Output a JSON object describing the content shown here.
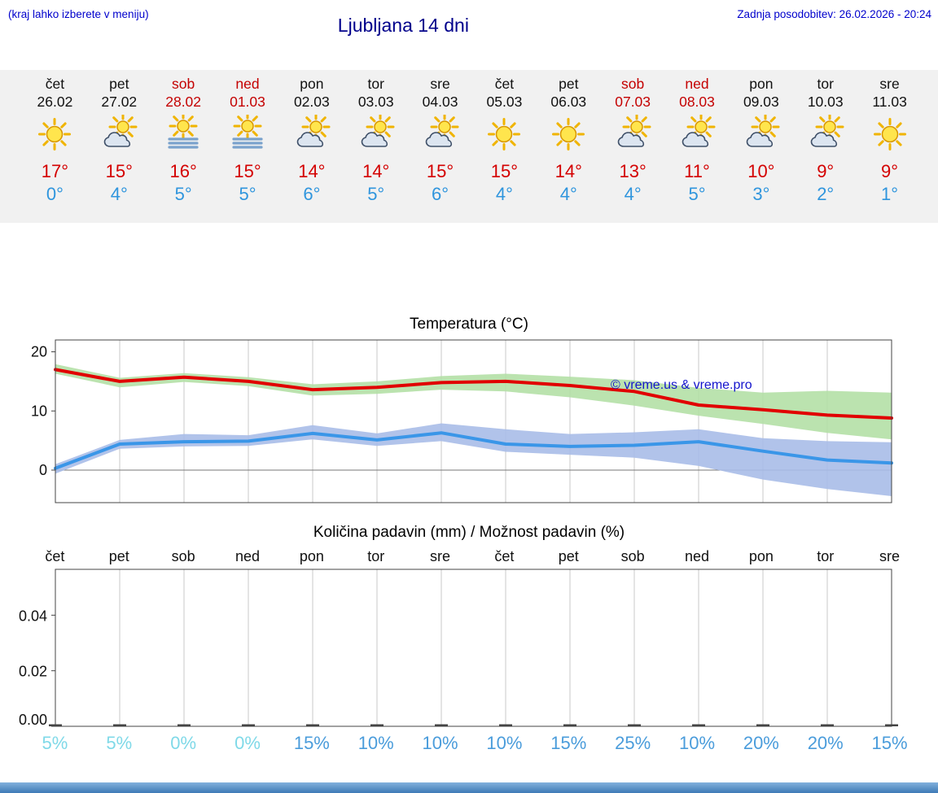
{
  "header": {
    "note": "(kraj lahko izberete v meniju)",
    "title": "Ljubljana 14 dni",
    "last_update": "Zadnja posodobitev: 26.02.2026 - 20:24"
  },
  "watermark": "© vreme.us & vreme.pro",
  "colors": {
    "link_blue": "#0000cc",
    "title_blue": "#00008b",
    "weekend_red": "#c40000",
    "weekday_black": "#111111",
    "high_red": "#d40000",
    "low_blue": "#2f95dd",
    "strip_bg": "#f1f1f1",
    "line_red": "#e10000",
    "line_blue": "#3a96e8",
    "band_green": "#b4e0a6",
    "band_blue": "#a8bce8",
    "prob_low": "#7fd9e8",
    "prob_high": "#4a9cdb",
    "footer_blue": "#3d7ab6"
  },
  "forecast": {
    "days": [
      {
        "name": "čet",
        "date": "26.02",
        "weekend": false,
        "icon": "sun",
        "high": "17°",
        "low": "0°"
      },
      {
        "name": "pet",
        "date": "27.02",
        "weekend": false,
        "icon": "sun-cloud",
        "high": "15°",
        "low": "4°"
      },
      {
        "name": "sob",
        "date": "28.02",
        "weekend": true,
        "icon": "sun-fog",
        "high": "16°",
        "low": "5°"
      },
      {
        "name": "ned",
        "date": "01.03",
        "weekend": true,
        "icon": "sun-fog",
        "high": "15°",
        "low": "5°"
      },
      {
        "name": "pon",
        "date": "02.03",
        "weekend": false,
        "icon": "sun-cloud",
        "high": "14°",
        "low": "6°"
      },
      {
        "name": "tor",
        "date": "03.03",
        "weekend": false,
        "icon": "sun-cloud",
        "high": "14°",
        "low": "5°"
      },
      {
        "name": "sre",
        "date": "04.03",
        "weekend": false,
        "icon": "sun-cloud",
        "high": "15°",
        "low": "6°"
      },
      {
        "name": "čet",
        "date": "05.03",
        "weekend": false,
        "icon": "sun",
        "high": "15°",
        "low": "4°"
      },
      {
        "name": "pet",
        "date": "06.03",
        "weekend": false,
        "icon": "sun",
        "high": "14°",
        "low": "4°"
      },
      {
        "name": "sob",
        "date": "07.03",
        "weekend": true,
        "icon": "sun-cloud",
        "high": "13°",
        "low": "4°"
      },
      {
        "name": "ned",
        "date": "08.03",
        "weekend": true,
        "icon": "sun-cloud",
        "high": "11°",
        "low": "5°"
      },
      {
        "name": "pon",
        "date": "09.03",
        "weekend": false,
        "icon": "sun-cloud",
        "high": "10°",
        "low": "3°"
      },
      {
        "name": "tor",
        "date": "10.03",
        "weekend": false,
        "icon": "sun-cloud",
        "high": "9°",
        "low": "2°"
      },
      {
        "name": "sre",
        "date": "11.03",
        "weekend": false,
        "icon": "sun",
        "high": "9°",
        "low": "1°"
      }
    ]
  },
  "chart_data": [
    {
      "type": "line",
      "title": "Temperatura (°C)",
      "x_days": [
        "čet",
        "pet",
        "sob",
        "ned",
        "pon",
        "tor",
        "sre",
        "čet",
        "pet",
        "sob",
        "ned",
        "pon",
        "tor",
        "sre"
      ],
      "ylim": [
        -5.5,
        22
      ],
      "yticks": [
        0,
        10,
        20
      ],
      "grid": "vertical-per-day",
      "legend": "none",
      "series": [
        {
          "name": "max-temp",
          "color": "#e10000",
          "values": [
            17,
            15,
            15.7,
            15,
            13.6,
            14,
            14.8,
            15,
            14.3,
            13.3,
            11,
            10.2,
            9.3,
            8.8
          ],
          "band_color": "#b4e0a6",
          "band_upper": [
            17.9,
            15.6,
            16.4,
            15.7,
            14.5,
            15,
            15.9,
            16.3,
            15.8,
            15.2,
            13.9,
            13.1,
            13.4,
            13.1
          ],
          "band_lower": [
            16.3,
            14,
            14.9,
            14.2,
            12.6,
            12.9,
            13.6,
            13.3,
            12.3,
            10.9,
            9.2,
            7.8,
            6.3,
            5.2
          ]
        },
        {
          "name": "min-temp",
          "color": "#3a96e8",
          "values": [
            0.3,
            4.4,
            4.8,
            4.9,
            6.2,
            5.1,
            6.3,
            4.4,
            4,
            4.2,
            4.8,
            3.2,
            1.7,
            1.2
          ],
          "band_color": "#a8bce8",
          "band_upper": [
            1,
            5.1,
            6.1,
            5.9,
            7.6,
            6.2,
            7.9,
            6.9,
            6.1,
            6.4,
            6.9,
            5.4,
            4.9,
            4.7
          ],
          "band_lower": [
            -0.6,
            3.6,
            4,
            4.1,
            5.2,
            4.1,
            4.9,
            3.1,
            2.6,
            2.1,
            0.7,
            -1.6,
            -3.2,
            -4.4
          ]
        }
      ]
    },
    {
      "type": "bar",
      "title": "Količina padavin (mm) / Možnost padavin (%)",
      "categories": [
        "čet",
        "pet",
        "sob",
        "ned",
        "pon",
        "tor",
        "sre",
        "čet",
        "pet",
        "sob",
        "ned",
        "pon",
        "tor",
        "sre"
      ],
      "values": [
        0,
        0,
        0,
        0,
        0,
        0,
        0,
        0,
        0,
        0,
        0,
        0,
        0,
        0
      ],
      "probabilities_pct": [
        5,
        5,
        0,
        0,
        15,
        10,
        10,
        10,
        15,
        25,
        10,
        20,
        20,
        15
      ],
      "ylim": [
        0,
        0.0565
      ],
      "yticks": [
        0,
        0.02,
        0.04
      ],
      "ytick_labels": [
        "0.00",
        "0.02",
        "0.04"
      ],
      "grid": "vertical-per-day"
    }
  ]
}
